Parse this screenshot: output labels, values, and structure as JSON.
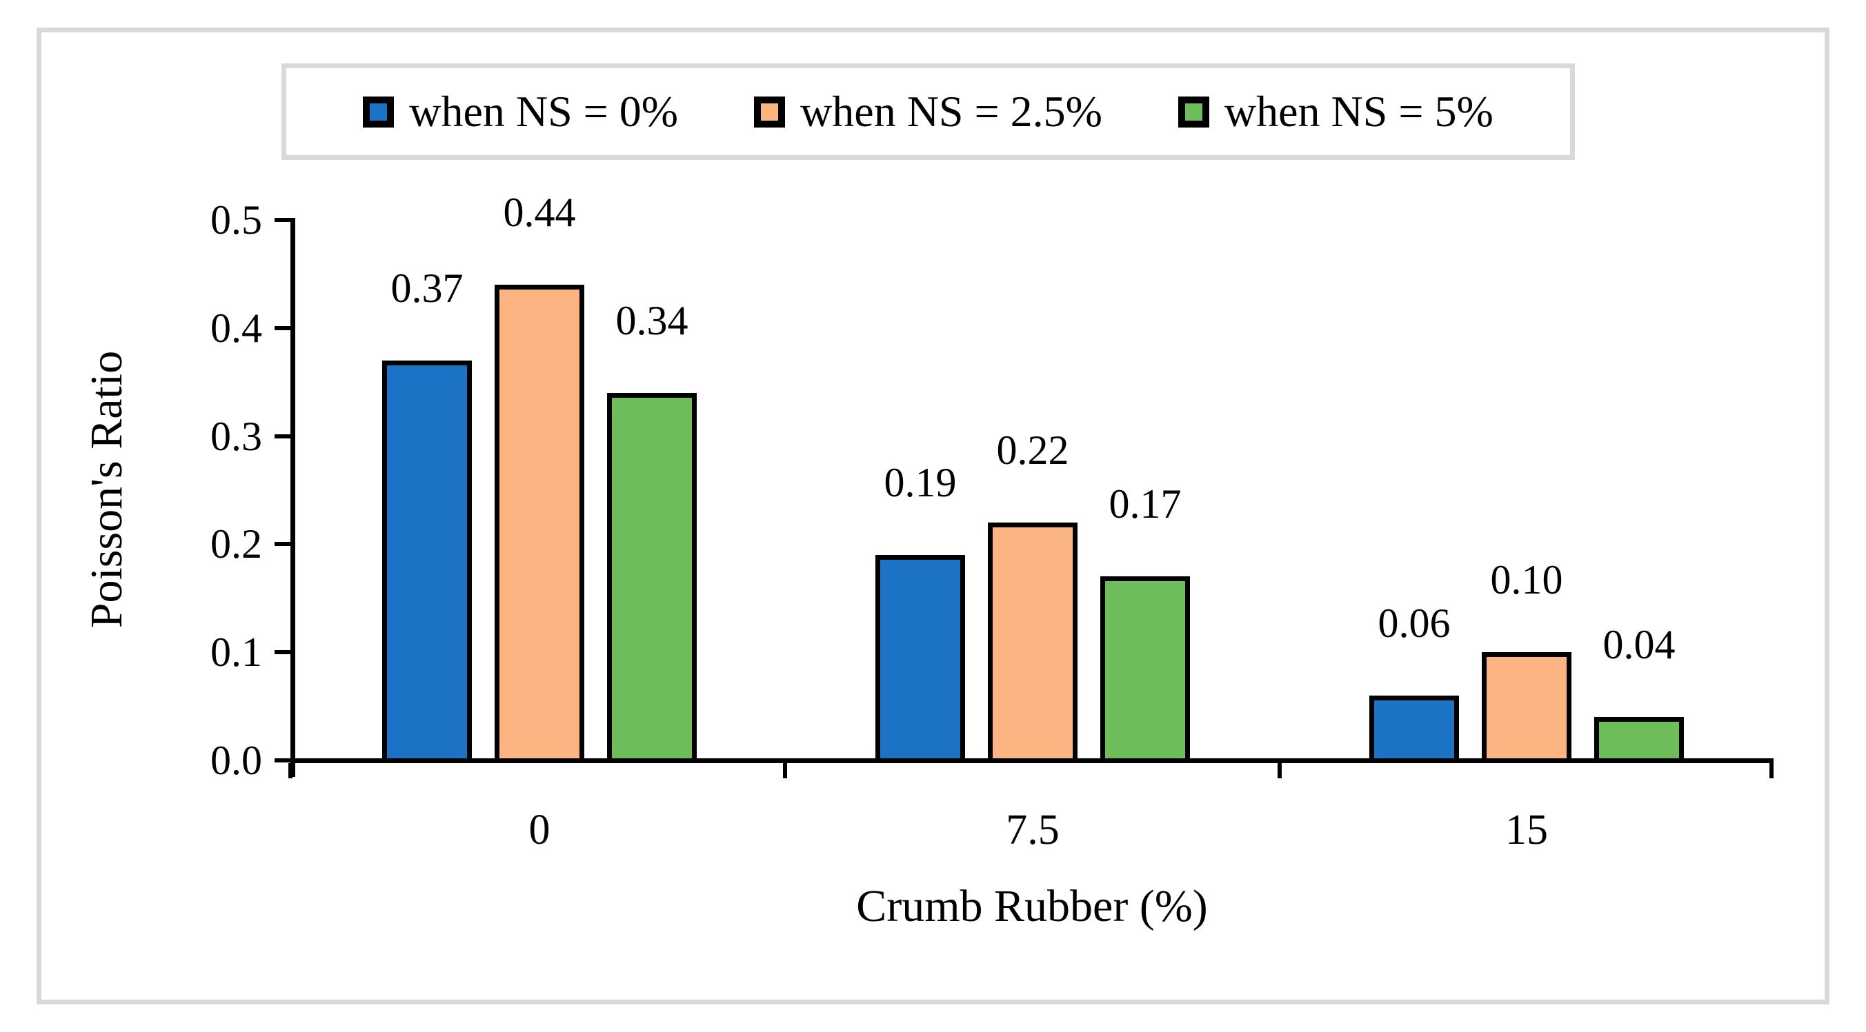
{
  "figure": {
    "background": "#FFFFFF",
    "frame_border_color": "#D9D9D9"
  },
  "chart_data": {
    "type": "bar",
    "title": "",
    "xlabel": "Crumb Rubber (%)",
    "ylabel": "Poisson's Ratio",
    "categories": [
      "0",
      "7.5",
      "15"
    ],
    "series": [
      {
        "name": "when NS = 0%",
        "color": "#1C72C4",
        "values": [
          0.37,
          0.19,
          0.06
        ],
        "value_labels": [
          "0.37",
          "0.19",
          "0.06"
        ]
      },
      {
        "name": "when NS = 2.5%",
        "color": "#FBB482",
        "values": [
          0.44,
          0.22,
          0.1
        ],
        "value_labels": [
          "0.44",
          "0.22",
          "0.10"
        ]
      },
      {
        "name": "when NS = 5%",
        "color": "#6DBE5B",
        "values": [
          0.34,
          0.17,
          0.04
        ],
        "value_labels": [
          "0.34",
          "0.17",
          "0.04"
        ]
      }
    ],
    "ylim": [
      0,
      0.5
    ],
    "yticks": [
      "0.0",
      "0.1",
      "0.2",
      "0.3",
      "0.4",
      "0.5"
    ],
    "bar_outline_color": "#000000",
    "axis_color": "#000000",
    "legend_position": "top",
    "legend_border_color": "#D9D9D9",
    "grid": "off",
    "data_labels": true
  }
}
